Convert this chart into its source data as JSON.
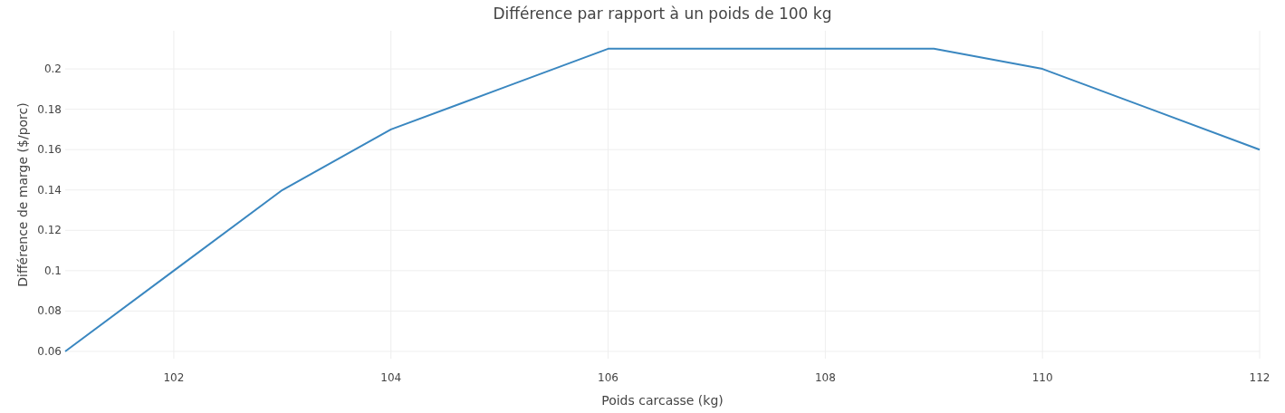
{
  "chart_data": {
    "type": "line",
    "title": "Différence par rapport à un poids de 100 kg",
    "xlabel": "Poids carcasse (kg)",
    "ylabel": "Différence de marge ($/porc)",
    "x": [
      101,
      102,
      103,
      104,
      105,
      106,
      107,
      108,
      109,
      110,
      111,
      112
    ],
    "series": [
      {
        "color": "#3a87c0",
        "values": [
          0.06,
          0.1,
          0.14,
          0.17,
          0.19,
          0.21,
          0.21,
          0.21,
          0.21,
          0.2,
          0.18,
          0.16
        ]
      }
    ],
    "xlim": [
      101,
      112
    ],
    "xticks": [
      102,
      104,
      106,
      108,
      110,
      112
    ],
    "ylim": [
      0.0564,
      0.2189
    ],
    "yticks": [
      {
        "value": 0.06,
        "label": "0.06"
      },
      {
        "value": 0.08,
        "label": "0.08"
      },
      {
        "value": 0.1,
        "label": "0.1"
      },
      {
        "value": 0.12,
        "label": "0.12"
      },
      {
        "value": 0.14,
        "label": "0.14"
      },
      {
        "value": 0.16,
        "label": "0.16"
      },
      {
        "value": 0.18,
        "label": "0.18"
      },
      {
        "value": 0.2,
        "label": "0.2"
      }
    ],
    "grid": true,
    "marker": "none",
    "line_style": "solid"
  }
}
